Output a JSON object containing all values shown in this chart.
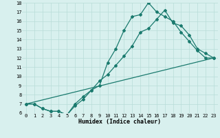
{
  "line1_x": [
    0,
    1,
    2,
    3,
    4,
    5,
    6,
    7,
    8,
    9,
    10,
    11,
    12,
    13,
    14,
    15,
    16,
    17,
    18,
    19,
    20,
    21,
    22,
    23
  ],
  "line1_y": [
    7.0,
    7.0,
    6.5,
    6.2,
    6.2,
    5.8,
    6.8,
    7.5,
    8.5,
    9.0,
    11.5,
    13.0,
    15.0,
    16.5,
    16.7,
    18.0,
    17.0,
    16.5,
    16.0,
    14.8,
    13.8,
    12.8,
    12.0,
    12.0
  ],
  "line2_x": [
    0,
    1,
    2,
    3,
    4,
    5,
    6,
    7,
    8,
    9,
    10,
    11,
    12,
    13,
    14,
    15,
    16,
    17,
    18,
    19,
    20,
    21,
    22,
    23
  ],
  "line2_y": [
    7.0,
    7.0,
    6.5,
    6.2,
    6.2,
    5.8,
    7.0,
    7.8,
    8.5,
    9.5,
    10.2,
    11.2,
    12.2,
    13.3,
    14.8,
    15.2,
    16.2,
    17.2,
    15.8,
    15.5,
    14.5,
    13.0,
    12.5,
    12.0
  ],
  "line3_x": [
    0,
    23
  ],
  "line3_y": [
    7.0,
    12.0
  ],
  "color": "#1a7a6e",
  "bg_color": "#d8f0ee",
  "grid_color": "#b8dcd8",
  "xlabel": "Humidex (Indice chaleur)",
  "xlim": [
    -0.5,
    23.5
  ],
  "ylim": [
    6,
    18
  ],
  "yticks": [
    6,
    7,
    8,
    9,
    10,
    11,
    12,
    13,
    14,
    15,
    16,
    17,
    18
  ],
  "xticks": [
    0,
    1,
    2,
    3,
    4,
    5,
    6,
    7,
    8,
    9,
    10,
    11,
    12,
    13,
    14,
    15,
    16,
    17,
    18,
    19,
    20,
    21,
    22,
    23
  ],
  "marker": "D",
  "markersize": 2.0,
  "linewidth": 0.9,
  "tick_fontsize": 5.0,
  "xlabel_fontsize": 6.0
}
